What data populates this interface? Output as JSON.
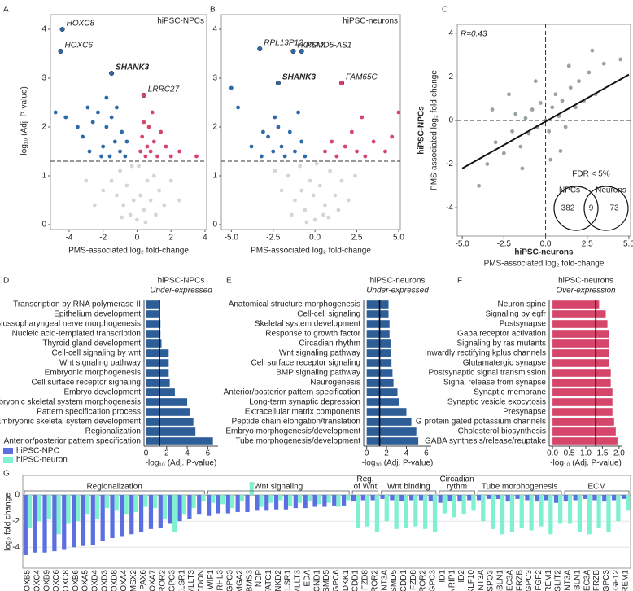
{
  "chart_data": [
    {
      "type": "scatter",
      "panel": "A",
      "note": "hiPSC-NPCs",
      "xlabel": [
        "PMS-associated log₂ fold-change"
      ],
      "ylabel": [
        "-log₁₀ (Adj. P-value)"
      ],
      "xlim": [
        -5.1,
        4.1
      ],
      "ylim": [
        -0.1,
        4.3
      ],
      "xticks": [
        -4,
        -2,
        0,
        2,
        4
      ],
      "yticks": [
        0,
        1,
        2,
        3,
        4
      ],
      "threshold": 1.3,
      "series": [
        {
          "color": "#d4d6d5",
          "x": [
            -1.5,
            -1.2,
            -1,
            -0.8,
            -0.6,
            -0.4,
            -0.2,
            0,
            0.2,
            0.4,
            0.6,
            0.8,
            1,
            1.3,
            1.6,
            2,
            2.5,
            -2,
            -2.5,
            -3,
            0.1,
            -0.3,
            0.5,
            -0.9,
            1.1
          ],
          "values": [
            0.9,
            0.6,
            1.1,
            0.4,
            0.8,
            0.2,
            0.5,
            0.1,
            0.6,
            0.3,
            0.9,
            0.5,
            1.0,
            0.7,
            0.4,
            0.9,
            0.5,
            0.7,
            0.4,
            0.9,
            1.2,
            1.2,
            0.05,
            0.15,
            0.2
          ]
        },
        {
          "color": "#2e6aa8",
          "x": [
            -4.2,
            -3.5,
            -3.2,
            -2.8,
            -2.6,
            -2.3,
            -2,
            -1.8,
            -1.6,
            -1.5,
            -1.3,
            -1.2,
            -1,
            -0.9,
            -0.7,
            -0.6,
            -2.9,
            -4.8,
            -1.8,
            -2.1
          ],
          "values": [
            2.2,
            2.0,
            1.8,
            1.5,
            2.1,
            2.3,
            1.6,
            2.0,
            1.4,
            2.2,
            1.7,
            2.4,
            1.5,
            1.9,
            1.4,
            1.7,
            2.4,
            2.3,
            2.6,
            1.4
          ]
        },
        {
          "color": "#d6456a",
          "x": [
            0.2,
            0.3,
            0.4,
            0.5,
            0.6,
            0.7,
            0.8,
            1,
            1.2,
            1.4,
            1.7,
            2,
            2.5,
            3.5,
            0.9
          ],
          "values": [
            1.5,
            1.8,
            2.1,
            1.4,
            1.6,
            2.0,
            1.5,
            1.7,
            1.4,
            1.9,
            1.6,
            1.4,
            1.5,
            1.4,
            2.3
          ]
        }
      ],
      "labels": [
        {
          "text": "HOXC8",
          "x": -4.4,
          "y": 4.0,
          "color": "#2e6aa8",
          "text_color": "#222222"
        },
        {
          "text": "HOXC6",
          "x": -4.5,
          "y": 3.55,
          "color": "#2e6aa8",
          "text_color": "#222222"
        },
        {
          "text": "SHANK3",
          "x": -1.5,
          "y": 3.1,
          "color": "#2e6aa8",
          "text_color": "#f2b400"
        },
        {
          "text": "LRRC27",
          "x": 0.4,
          "y": 2.65,
          "color": "#d6456a",
          "text_color": "#222222"
        }
      ]
    },
    {
      "type": "scatter",
      "panel": "B",
      "note": "hiPSC-neurons",
      "xlabel": [
        "PMS-associated log₂ fold-change"
      ],
      "xlim": [
        -5.6,
        5.1
      ],
      "ylim": [
        -0.1,
        4.3
      ],
      "xticks": [
        {
          "value": -5,
          "label": "-5.0"
        },
        -2.5,
        {
          "value": 0,
          "label": "0.0"
        },
        2.5,
        {
          "value": 5,
          "label": "5.0"
        }
      ],
      "yticks": [
        0,
        1,
        2,
        3,
        4
      ],
      "threshold": 1.3,
      "series": [
        {
          "color": "#d4d6d5",
          "x": [
            -2,
            -1.6,
            -1.2,
            -0.9,
            -0.6,
            -0.3,
            0,
            0.3,
            0.6,
            0.9,
            1.2,
            1.6,
            2,
            -0.5,
            0.5,
            -1.4,
            1.4,
            -2.4,
            2.4,
            0.1,
            -0.1,
            -0.8,
            0.8
          ],
          "values": [
            0.7,
            1.0,
            0.5,
            1.2,
            0.3,
            0.9,
            0.1,
            0.8,
            0.4,
            1.1,
            0.6,
            0.9,
            0.5,
            0.05,
            0.2,
            0.2,
            0.3,
            1.1,
            1.0,
            1.25,
            0.6,
            0.7,
            0.15
          ]
        },
        {
          "color": "#2e6aa8",
          "x": [
            -4.6,
            -3.8,
            -3.2,
            -2.8,
            -2.5,
            -2.2,
            -2,
            -1.8,
            -1.5,
            -1.2,
            -1,
            -0.8,
            -0.6,
            -3.1,
            -2.4,
            -5
          ],
          "values": [
            2.4,
            1.6,
            1.4,
            1.8,
            1.5,
            2.0,
            1.6,
            1.4,
            1.9,
            1.5,
            2.3,
            1.7,
            1.4,
            1.9,
            2.2,
            2.8
          ]
        },
        {
          "color": "#d6456a",
          "x": [
            0.6,
            1,
            1.3,
            1.8,
            2.2,
            2.5,
            3,
            3.5,
            4.2,
            4.6,
            2.8,
            5
          ],
          "values": [
            1.5,
            1.7,
            1.4,
            1.6,
            1.9,
            1.5,
            1.4,
            1.7,
            1.5,
            1.8,
            2.2,
            2.3
          ]
        }
      ],
      "labels": [
        {
          "text": "RPL13P12",
          "x": -3.3,
          "y": 3.6,
          "color": "#2e6aa8",
          "text_color": "#222222"
        },
        {
          "text": "HOXA7",
          "x": -1.3,
          "y": 3.55,
          "color": "#2e6aa8",
          "text_color": "#222222"
        },
        {
          "text": "PSMD5-AS1",
          "x": -0.8,
          "y": 3.55,
          "color": "#2e6aa8",
          "text_color": "#222222"
        },
        {
          "text": "SHANK3",
          "x": -2.2,
          "y": 2.9,
          "color": "#2e6aa8",
          "text_color": "#f2b400"
        },
        {
          "text": "FAM65C",
          "x": 1.6,
          "y": 2.9,
          "color": "#d6456a",
          "text_color": "#222222"
        }
      ]
    },
    {
      "type": "scatter",
      "panel": "C",
      "r_text": "R=0.43",
      "xlabel": [
        "hiPSC-neurons",
        "PMS-associated log₂ fold-change"
      ],
      "ylabel": [
        "hiPSC-NPCs",
        "PMS-associated log₂ fold-change"
      ],
      "xlim": [
        -5.3,
        5.1
      ],
      "ylim": [
        -5.3,
        4.4
      ],
      "xticks": [
        {
          "value": -5,
          "label": "-5.0"
        },
        -2.5,
        {
          "value": 0,
          "label": "0.0"
        },
        2.5,
        {
          "value": 5,
          "label": "5.0"
        }
      ],
      "yticks": [
        -4,
        -2,
        0,
        2,
        4
      ],
      "hline": 0,
      "vline": 0,
      "series": [
        {
          "color": "#9aa39e",
          "x": [
            -3.5,
            -3,
            -2.5,
            -2,
            -1.8,
            -1.5,
            -1.2,
            -1,
            -0.8,
            -0.5,
            -0.3,
            0,
            0.2,
            0.4,
            0.6,
            0.8,
            1,
            1.2,
            1.5,
            1.8,
            2,
            2.3,
            2.6,
            3,
            3.5,
            -4,
            -2.2,
            1.4,
            -1.4,
            0.9,
            4.5,
            -0.6,
            0.3,
            2.8,
            -3.2
          ],
          "values": [
            -2.0,
            -1,
            -1.5,
            -0.5,
            0.3,
            -1.2,
            0.1,
            -0.6,
            0.5,
            -0.3,
            0.8,
            0,
            -0.5,
            0.6,
            1.2,
            0.2,
            0.9,
            -0.3,
            1.5,
            0.6,
            1.8,
            0.9,
            2.2,
            1.2,
            2.6,
            -3,
            1.2,
            2.5,
            -2.2,
            -1.4,
            2.8,
            1.8,
            -1.8,
            3.2,
            0.5
          ]
        }
      ],
      "fit": {
        "x": [
          -5,
          5
        ],
        "values": [
          -2.2,
          2.1
        ]
      },
      "venn": {
        "title": "FDR < 5%",
        "left_label": "NPCs",
        "right_label": "Neurons",
        "left": 382,
        "both": 9,
        "right": 73
      }
    },
    {
      "type": "barh",
      "panel": "D",
      "subtitle": "hiPSC-NPCs",
      "heading": "Under-expressed",
      "heading_color": "#1f3f99",
      "color": "#2d5e98",
      "xlabel": "-log₁₀ (Adj. P-value)",
      "xlim": [
        -0.2,
        7
      ],
      "xticks": [
        0,
        2,
        4,
        6
      ],
      "threshold": 1.3,
      "categories": [
        "Transcription by RNA polymerase II",
        "Epithelium development",
        "Glossopharyngeal nerve morphogenesis",
        "Nucleic acid-templated transcription",
        "Thyroid gland development",
        "Cell-cell signaling by wnt",
        "Wnt signaling pathway",
        "Embryonic morphogenesis",
        "Cell surface receptor signaling",
        "Embryo development",
        "Embryonic skeletal system morphogenesis",
        "Pattern specification process",
        "Embryonic skeletal system development",
        "Regionalization",
        "Anterior/posterior pattern specification"
      ],
      "values": [
        1.3,
        1.3,
        1.4,
        1.4,
        1.5,
        2.2,
        2.2,
        2.2,
        2.3,
        2.8,
        4.0,
        4.3,
        4.6,
        4.8,
        6.5
      ]
    },
    {
      "type": "barh",
      "panel": "E",
      "subtitle": "hiPSC-neurons",
      "heading": "Under-expressed",
      "heading_color": "#1f3f99",
      "color": "#2d5e98",
      "xlabel": "-log₁₀ (Adj. P-value)",
      "xlim": [
        -0.3,
        6.5
      ],
      "xticks": [
        0,
        2,
        4,
        6
      ],
      "threshold": 1.3,
      "categories": [
        "Anatomical structure morphogenesis",
        "Cell-cell signaling",
        "Skeletal system development",
        "Response to growth factor",
        "Circadian rhythm",
        "Wnt signaling pathway",
        "Cell surface receptor signaling",
        "BMP signaling pathway",
        "Neurogenesis",
        "Anterior/posterior pattern specification",
        "Long-term synaptic depression",
        "Extracellular matrix components",
        "Peptide chain elongation/translation",
        "Embryo morphogenesis/development",
        "Tube morphogenesis/development"
      ],
      "values": [
        2.2,
        2.2,
        2.3,
        2.3,
        2.4,
        2.4,
        2.5,
        2.6,
        2.7,
        3.1,
        3.3,
        4.0,
        4.5,
        5.0,
        5.2
      ]
    },
    {
      "type": "barh",
      "panel": "F",
      "subtitle": "hiPSC-neurons",
      "heading": "Over-expression",
      "heading_color": "#d6456a",
      "color": "#d6456a",
      "xlabel": "-log₁₀ (Adj. P-value)",
      "xlim": [
        -0.1,
        2.1
      ],
      "xticks": [
        {
          "value": 0,
          "label": "0.0"
        },
        0.5,
        {
          "value": 1,
          "label": "1.0"
        },
        1.5,
        {
          "value": 2,
          "label": "2.0"
        }
      ],
      "threshold": 1.3,
      "categories": [
        "Neuron spine",
        "Signaling by egfr",
        "Postsynapse",
        "Gaba receptor activation",
        "Signaling by ras mutants",
        "Inwardly rectifying kplus channels",
        "Glutamatergic synapse",
        "Postsynaptic signal transmission",
        "Signal release from synapse",
        "Synaptic membrane",
        "Synaptic vesicle exocytosis",
        "Presynapse",
        "G protein gated potassium channels",
        "Cholesterol biosynthesis",
        "GABA synthesis/release/reuptake"
      ],
      "values": [
        1.4,
        1.6,
        1.65,
        1.7,
        1.7,
        1.7,
        1.7,
        1.75,
        1.75,
        1.8,
        1.8,
        1.8,
        1.85,
        1.9,
        1.95
      ]
    },
    {
      "type": "grouped-bar",
      "panel": "G",
      "ylabel": "log₂ fold change",
      "ylim": [
        -5.6,
        1.5
      ],
      "yticks": [
        0,
        -2,
        -4
      ],
      "grid": true,
      "series": [
        {
          "name": "hiPSC-NPC",
          "color": "#5b6fe0"
        },
        {
          "name": "hiPSC-neuron",
          "color": "#7ff0d0"
        }
      ],
      "groups": [
        {
          "label": [
            "Regionalization"
          ],
          "categories": [
            "HOXB5",
            "HOXC4",
            "HOXB9",
            "HOXC6",
            "HOXC8",
            "HOXB6",
            "HOXA5",
            "HOXD4",
            "HOXD3",
            "HOXD8",
            "HOXA4",
            "MSX2",
            "PAX6",
            "HOXA7",
            "ROR2",
            "GPC3",
            "CELSR1",
            "MLLT3",
            "CDON"
          ],
          "values": [
            [
              -4.6,
              -4.4,
              -4.4,
              -4.3,
              -4.2,
              -4.0,
              -3.9,
              -3.8,
              -3.5,
              -3.3,
              -3.2,
              -3.0,
              -2.8,
              -2.6,
              -2.5,
              -2.2,
              -2.0,
              -1.8,
              -1.5
            ],
            [
              -2.5,
              -2.0,
              -1.8,
              -3.0,
              -2.2,
              -2.0,
              -1.5,
              -1.8,
              -1.0,
              -1.2,
              -1.5,
              -1.3,
              -0.9,
              -1.0,
              -1.8,
              -2.8,
              -1.5,
              -1.0,
              -0.5
            ]
          ]
        },
        {
          "label": [
            "Wnt signaling"
          ],
          "categories": [
            "WIF1",
            "GRHL3",
            "GPC3",
            "HMGA2",
            "RBMS3",
            "NDP",
            "NFATC1",
            "NKD2",
            "CELSR1",
            "MLLT3",
            "EDA",
            "CCND1",
            "PSMD5",
            "GPC6",
            "DKK1"
          ],
          "values": [
            [
              -1.6,
              -1.4,
              -1.4,
              -1.3,
              -1.3,
              -1.2,
              -1.2,
              -1.1,
              -1.1,
              -1.0,
              -1.0,
              -0.9,
              -0.9,
              -0.8,
              -0.8
            ],
            [
              -0.6,
              -0.7,
              -1.0,
              -0.5,
              1.0,
              -0.9,
              -0.6,
              -0.4,
              -0.8,
              -0.6,
              -0.5,
              -0.7,
              -0.6,
              -0.9,
              -0.4
            ]
          ]
        },
        {
          "label": [
            "Reg.",
            "of Wnt"
          ],
          "categories": [
            "APCDD1",
            "FZD8",
            "ROR2"
          ],
          "values": [
            [
              -0.5,
              -0.4,
              -0.4
            ],
            [
              -2.5,
              -2.4,
              -2.8
            ]
          ]
        },
        {
          "label": [
            "Wnt binding"
          ],
          "categories": [
            "WNT3A",
            "PSMD5",
            "APCDD1",
            "FZD8",
            "ROR2",
            "GPC3"
          ],
          "values": [
            [
              -0.3,
              -0.4,
              -0.5,
              -0.4,
              -0.4,
              -0.5
            ],
            [
              -2.0,
              -2.6,
              -2.5,
              -2.4,
              -2.6,
              -2.8
            ]
          ]
        },
        {
          "label": [
            "Circadian",
            "rythm"
          ],
          "categories": [
            "ID1",
            "NRIP1",
            "ID2",
            "KLF10"
          ],
          "values": [
            [
              -0.6,
              -0.5,
              -0.5,
              -0.4
            ],
            [
              -1.4,
              -1.7,
              -1.5,
              -1.2
            ]
          ]
        },
        {
          "label": [
            "Tube morphogenesis"
          ],
          "categories": [
            "WNT3A",
            "RSPO3",
            "CBLN1",
            "CLEC3A",
            "FRZB",
            "GPC3",
            "FGF2",
            "FREM1",
            "SLIT2"
          ],
          "values": [
            [
              -0.4,
              -0.3,
              -0.3,
              -0.5,
              -0.3,
              -0.4,
              -0.5,
              -0.4,
              -0.6
            ],
            [
              -2.0,
              -2.6,
              -3.0,
              -2.8,
              -2.5,
              -2.7,
              -2.4,
              -3.0,
              -2.2
            ]
          ]
        },
        {
          "label": [
            "ECM"
          ],
          "categories": [
            "WNT3A",
            "CBLN1",
            "CLEC3A",
            "FRZB",
            "GPC3",
            "FGF12",
            "FREM1"
          ],
          "values": [
            [
              -0.5,
              -0.4,
              -0.3,
              -0.4,
              -0.5,
              -0.4,
              -0.3
            ],
            [
              -2.2,
              -2.8,
              -3.0,
              -2.5,
              -2.8,
              -2.0,
              -1.2
            ]
          ]
        }
      ]
    }
  ]
}
